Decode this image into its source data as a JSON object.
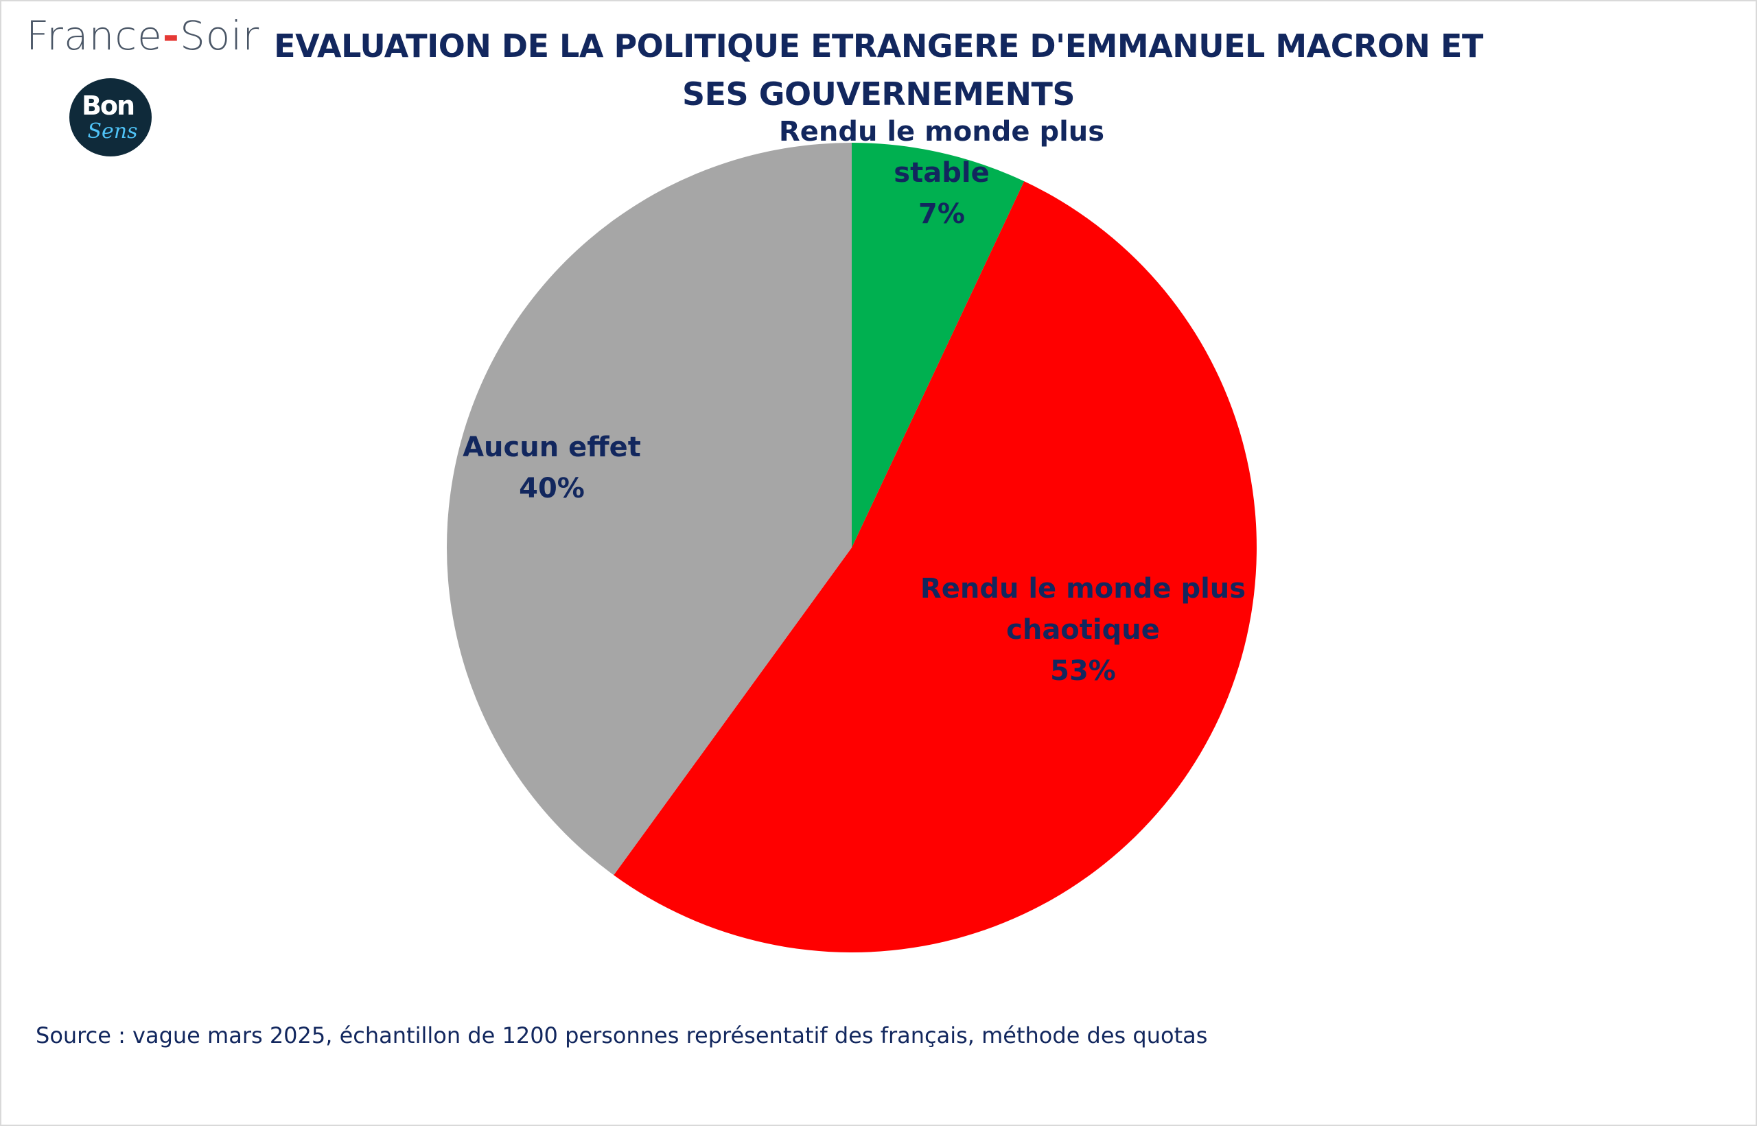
{
  "brand": {
    "name_left": "France",
    "name_dash": "-",
    "name_right": "Soir",
    "badge_top": "Bon",
    "badge_bottom": "Sens",
    "dash_color": "#e53935",
    "badge_color": "#0f2a3a",
    "badge_accent": "#4fc3f7"
  },
  "title": "EVALUATION DE LA POLITIQUE ETRANGERE D'EMMANUEL MACRON ET SES GOUVERNEMENTS",
  "source": "Source : vague mars 2025, échantillon de 1200 personnes représentatif des français, méthode des quotas",
  "chart_data": {
    "type": "pie",
    "title": "EVALUATION DE LA POLITIQUE ETRANGERE D'EMMANUEL MACRON ET SES GOUVERNEMENTS",
    "unit": "%",
    "slices": [
      {
        "label": "Rendu le monde plus stable",
        "label_lines": [
          "Rendu le monde plus",
          "stable"
        ],
        "value": 7,
        "value_label": "7%",
        "color": "#00b050"
      },
      {
        "label": "Rendu le monde plus chaotique",
        "label_lines": [
          "Rendu le monde plus",
          "chaotique"
        ],
        "value": 53,
        "value_label": "53%",
        "color": "#ff0000"
      },
      {
        "label": "Aucun effet",
        "label_lines": [
          "Aucun effet"
        ],
        "value": 40,
        "value_label": "40%",
        "color": "#a6a6a6"
      }
    ],
    "start": "12 o'clock",
    "direction": "clockwise",
    "legend": "none"
  }
}
